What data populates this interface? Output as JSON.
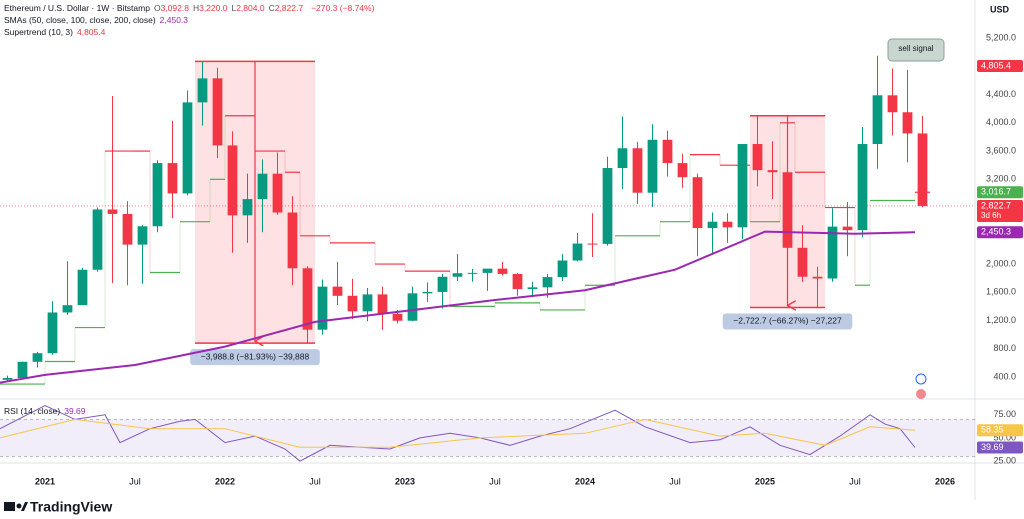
{
  "header": {
    "symbol": "Ethereum / U.S. Dollar · 1W · Bitstamp",
    "ohlc": [
      {
        "key": "O",
        "value": "3,092.8"
      },
      {
        "key": "H",
        "value": "3,220.0"
      },
      {
        "key": "L",
        "value": "2,804.0"
      },
      {
        "key": "C",
        "value": "2,822.7"
      }
    ],
    "change": "−270.3 (−8.74%)",
    "sma_title": "SMAs (50, close, 100, close, 200, close)",
    "sma_value": "2,450.3",
    "supertrend_title": "Supertrend (10, 3)",
    "supertrend_value": "4,805.4",
    "currency": "USD",
    "brand": "TradingView"
  },
  "chart_data": [
    {
      "type": "candlestick",
      "grid": false,
      "xlim": [
        "2020-10",
        "2026-03"
      ],
      "ylim": [
        145,
        5740
      ],
      "xticks": [
        {
          "value": "2021-01",
          "label": "2021"
        },
        {
          "value": "2021-07",
          "label": "Jul"
        },
        {
          "value": "2022-01",
          "label": "2022"
        },
        {
          "value": "2022-07",
          "label": "Jul"
        },
        {
          "value": "2023-01",
          "label": "2023"
        },
        {
          "value": "2023-07",
          "label": "Jul"
        },
        {
          "value": "2024-01",
          "label": "2024"
        },
        {
          "value": "2024-07",
          "label": "Jul"
        },
        {
          "value": "2025-01",
          "label": "2025"
        },
        {
          "value": "2025-07",
          "label": "Jul"
        },
        {
          "value": "2026-01",
          "label": "2026"
        }
      ],
      "yticks": [
        {
          "value": 400,
          "label": "400.0"
        },
        {
          "value": 800,
          "label": "800.0"
        },
        {
          "value": 1200,
          "label": "1,200.0"
        },
        {
          "value": 1600,
          "label": "1,600.0"
        },
        {
          "value": 2000,
          "label": "2,000.0"
        },
        {
          "value": 3200,
          "label": "3,200.0"
        },
        {
          "value": 3600,
          "label": "3,600.0"
        },
        {
          "value": 4000,
          "label": "4,000.0"
        },
        {
          "value": 4400,
          "label": "4,400.0"
        },
        {
          "value": 5200,
          "label": "5,200.0"
        }
      ],
      "up_color": "#089981",
      "down_color": "#f23645",
      "x": [
        "2020-10",
        "2020-11",
        "2020-12",
        "2021-01",
        "2021-02",
        "2021-03",
        "2021-04",
        "2021-05",
        "2021-06",
        "2021-07",
        "2021-08",
        "2021-09",
        "2021-10",
        "2021-11",
        "2021-12",
        "2022-01",
        "2022-02",
        "2022-03",
        "2022-04",
        "2022-05",
        "2022-06",
        "2022-07",
        "2022-08",
        "2022-09",
        "2022-10",
        "2022-11",
        "2022-12",
        "2023-01",
        "2023-02",
        "2023-03",
        "2023-04",
        "2023-05",
        "2023-06",
        "2023-07",
        "2023-08",
        "2023-09",
        "2023-10",
        "2023-11",
        "2023-12",
        "2024-01",
        "2024-02",
        "2024-03",
        "2024-04",
        "2024-05",
        "2024-06",
        "2024-07",
        "2024-08",
        "2024-09",
        "2024-10",
        "2024-11",
        "2024-12",
        "2025-01",
        "2025-02",
        "2025-03",
        "2025-04",
        "2025-05",
        "2025-06",
        "2025-07",
        "2025-08",
        "2025-09",
        "2025-10",
        "2025-11"
      ],
      "open": [
        360,
        386,
        615,
        737,
        1314,
        1417,
        1919,
        2773,
        2710,
        2275,
        2535,
        3430,
        3000,
        4290,
        4630,
        3680,
        2690,
        2920,
        3280,
        2730,
        1940,
        1070,
        1680,
        1550,
        1330,
        1570,
        1295,
        1197,
        1585,
        1605,
        1820,
        1870,
        1875,
        1935,
        1860,
        1645,
        1670,
        1815,
        2050,
        2290,
        2285,
        3360,
        3640,
        3010,
        3760,
        3430,
        3230,
        2510,
        2600,
        2520,
        3700,
        3330,
        3300,
        2230,
        1820,
        1795,
        2530,
        2480,
        3700,
        4390,
        4150,
        3850
      ],
      "high": [
        420,
        620,
        755,
        1475,
        2040,
        1945,
        2800,
        4380,
        2890,
        2550,
        3470,
        4030,
        4460,
        4870,
        4780,
        3880,
        3280,
        3480,
        3580,
        2960,
        1970,
        1780,
        2030,
        1790,
        1660,
        1680,
        1350,
        1680,
        1740,
        1860,
        2140,
        1930,
        1930,
        2030,
        1870,
        1750,
        1860,
        2140,
        2440,
        2720,
        3520,
        4090,
        3730,
        3980,
        3890,
        3560,
        3280,
        2730,
        2720,
        3700,
        4110,
        3740,
        3440,
        2550,
        1960,
        2790,
        2880,
        3940,
        4950,
        4770,
        4750,
        4100
      ],
      "low": [
        335,
        373,
        535,
        715,
        1280,
        1440,
        1890,
        1730,
        1700,
        1720,
        2450,
        2650,
        2970,
        3960,
        3500,
        2160,
        2300,
        2450,
        2700,
        1700,
        880,
        1000,
        1420,
        1220,
        1190,
        1070,
        1160,
        1190,
        1460,
        1370,
        1760,
        1750,
        1620,
        1840,
        1550,
        1530,
        1520,
        1760,
        2040,
        2100,
        2260,
        3060,
        2850,
        2810,
        3240,
        3080,
        2110,
        2150,
        2300,
        2350,
        3100,
        2920,
        2100,
        1750,
        1385,
        1750,
        2110,
        2380,
        3350,
        3820,
        3440,
        2804
      ],
      "close": [
        386,
        615,
        737,
        1314,
        1417,
        1919,
        2773,
        2710,
        2275,
        2535,
        3430,
        3000,
        4290,
        4630,
        3680,
        2690,
        2920,
        3280,
        2730,
        1940,
        1070,
        1680,
        1550,
        1330,
        1570,
        1295,
        1197,
        1585,
        1605,
        1820,
        1870,
        1875,
        1935,
        1860,
        1645,
        1670,
        1815,
        2050,
        2290,
        2285,
        3360,
        3640,
        3010,
        3760,
        3430,
        3230,
        2510,
        2600,
        2520,
        3700,
        3330,
        3300,
        2230,
        1820,
        1795,
        2530,
        2480,
        3700,
        4390,
        4150,
        3850,
        2822.7
      ],
      "sma": {
        "color": "#9c27b0",
        "x": [
          "2020-10",
          "2021-01",
          "2021-07",
          "2022-01",
          "2022-07",
          "2023-01",
          "2023-07",
          "2024-01",
          "2024-07",
          "2025-01",
          "2025-07",
          "2025-11"
        ],
        "values": [
          320,
          430,
          570,
          830,
          1180,
          1335,
          1490,
          1630,
          1920,
          2460,
          2430,
          2450.3
        ]
      },
      "supertrend": {
        "up_color": "#4caf50",
        "down_color": "#f23645",
        "x": [
          "2020-10",
          "2021-01",
          "2021-03",
          "2021-05",
          "2021-07",
          "2021-08",
          "2021-10",
          "2021-12",
          "2022-01",
          "2022-03",
          "2022-05",
          "2022-06",
          "2022-08",
          "2022-11",
          "2023-01",
          "2023-04",
          "2023-07",
          "2023-10",
          "2024-01",
          "2024-03",
          "2024-06",
          "2024-08",
          "2024-10",
          "2024-12",
          "2025-02",
          "2025-03",
          "2025-05",
          "2025-07",
          "2025-08",
          "2025-11"
        ],
        "values": [
          300,
          620,
          1100,
          3600,
          3600,
          1880,
          2600,
          3200,
          4100,
          3600,
          3300,
          2400,
          2300,
          2000,
          1900,
          1400,
          1450,
          1350,
          1700,
          2400,
          2600,
          3550,
          3400,
          2600,
          4000,
          3300,
          2800,
          1700,
          2900,
          3016.7
        ]
      },
      "price_labels": [
        {
          "value": 4805.4,
          "label": "4,805.4",
          "color": "#f23645"
        },
        {
          "value": 3016.7,
          "label": "3,016.7",
          "color": "#4caf50"
        },
        {
          "value": 2822.7,
          "label": "2,822.7",
          "sublabel": "3d 6h",
          "color": "#f23645"
        },
        {
          "value": 2450.3,
          "label": "2,450.3",
          "color": "#9c27b0"
        }
      ],
      "measures": [
        {
          "from": "2021-11",
          "to": "2022-06",
          "high": 4870,
          "low": 880,
          "label": "−3,988.8 (−81.93%) −39,888"
        },
        {
          "from": "2024-12",
          "to": "2025-04",
          "high": 4100,
          "low": 1385,
          "label": "−2,722.7 (−66.27%) −27,227"
        }
      ],
      "callout": "sell signal"
    },
    {
      "type": "line",
      "title": "RSI (14, close)",
      "xlim": [
        "2020-10",
        "2026-03"
      ],
      "ylim": [
        24,
        91
      ],
      "bands": [
        30,
        70
      ],
      "yticks": [
        {
          "value": 25,
          "label": "25.00"
        },
        {
          "value": 50,
          "label": "50.00"
        },
        {
          "value": 75,
          "label": "75.00"
        }
      ],
      "series": [
        {
          "name": "RSI",
          "color": "#7e57c2",
          "x": [
            "2020-10",
            "2021-01",
            "2021-03",
            "2021-05",
            "2021-06",
            "2021-08",
            "2021-10",
            "2021-11",
            "2022-01",
            "2022-03",
            "2022-05",
            "2022-06",
            "2022-08",
            "2022-10",
            "2022-12",
            "2023-02",
            "2023-04",
            "2023-06",
            "2023-08",
            "2023-10",
            "2023-12",
            "2024-03",
            "2024-05",
            "2024-08",
            "2024-10",
            "2024-12",
            "2025-02",
            "2025-04",
            "2025-06",
            "2025-08",
            "2025-09",
            "2025-10",
            "2025-11"
          ],
          "values": [
            60,
            85,
            70,
            75,
            45,
            60,
            68,
            70,
            45,
            52,
            38,
            25,
            42,
            40,
            38,
            50,
            55,
            50,
            42,
            52,
            60,
            80,
            62,
            45,
            48,
            62,
            42,
            32,
            52,
            75,
            65,
            60,
            39.69
          ]
        },
        {
          "name": "RSI MA",
          "color": "#f7c548",
          "x": [
            "2020-10",
            "2021-03",
            "2021-08",
            "2022-01",
            "2022-06",
            "2022-12",
            "2023-06",
            "2024-01",
            "2024-05",
            "2024-10",
            "2025-01",
            "2025-05",
            "2025-08",
            "2025-11"
          ],
          "values": [
            50,
            70,
            60,
            60,
            40,
            40,
            50,
            55,
            70,
            52,
            55,
            42,
            62,
            58.35
          ]
        }
      ],
      "price_labels": [
        {
          "value": 58.35,
          "label": "58.35",
          "color": "#f7c548"
        },
        {
          "value": 39.69,
          "label": "39.69",
          "color": "#7e57c2"
        }
      ]
    }
  ]
}
